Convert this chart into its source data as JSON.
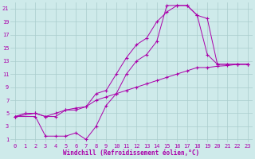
{
  "xlabel": "Windchill (Refroidissement éolien,°C)",
  "background_color": "#ceeaea",
  "grid_color": "#aacccc",
  "line_color": "#aa00aa",
  "xlim": [
    -0.5,
    23.5
  ],
  "ylim": [
    0.5,
    22
  ],
  "xticks": [
    0,
    1,
    2,
    3,
    4,
    5,
    6,
    7,
    8,
    9,
    10,
    11,
    12,
    13,
    14,
    15,
    16,
    17,
    18,
    19,
    20,
    21,
    22,
    23
  ],
  "yticks": [
    1,
    3,
    5,
    7,
    9,
    11,
    13,
    15,
    17,
    19,
    21
  ],
  "line1_x": [
    0,
    1,
    2,
    3,
    4,
    5,
    6,
    7,
    8,
    9,
    10,
    11,
    12,
    13,
    14,
    15,
    16,
    17,
    18,
    19,
    20,
    21,
    22,
    23
  ],
  "line1_y": [
    4.5,
    5.0,
    5.0,
    4.5,
    5.0,
    5.5,
    5.8,
    6.0,
    7.0,
    7.5,
    8.0,
    8.5,
    9.0,
    9.5,
    10.0,
    10.5,
    11.0,
    11.5,
    12.0,
    12.0,
    12.2,
    12.3,
    12.5,
    12.5
  ],
  "line2_x": [
    0,
    2,
    3,
    4,
    5,
    6,
    7,
    8,
    9,
    10,
    11,
    12,
    13,
    14,
    15,
    16,
    17,
    18,
    19,
    20,
    21,
    22,
    23
  ],
  "line2_y": [
    4.5,
    4.5,
    1.5,
    1.5,
    1.5,
    2.0,
    1.0,
    3.0,
    6.2,
    8.0,
    11.0,
    13.0,
    14.0,
    16.0,
    21.5,
    21.5,
    21.5,
    20.0,
    14.0,
    12.5,
    12.5,
    12.5,
    12.5
  ],
  "line3_x": [
    0,
    2,
    3,
    4,
    5,
    6,
    7,
    8,
    9,
    10,
    11,
    12,
    13,
    14,
    15,
    16,
    17,
    18,
    19,
    20,
    21,
    22,
    23
  ],
  "line3_y": [
    4.5,
    5.0,
    4.5,
    4.5,
    5.5,
    5.5,
    6.0,
    8.0,
    8.5,
    11.0,
    13.5,
    15.5,
    16.5,
    19.0,
    20.5,
    21.5,
    21.5,
    20.0,
    19.5,
    12.5,
    12.5,
    12.5,
    12.5
  ],
  "tick_fontsize": 5.0,
  "label_fontsize": 5.5,
  "marker": "+"
}
